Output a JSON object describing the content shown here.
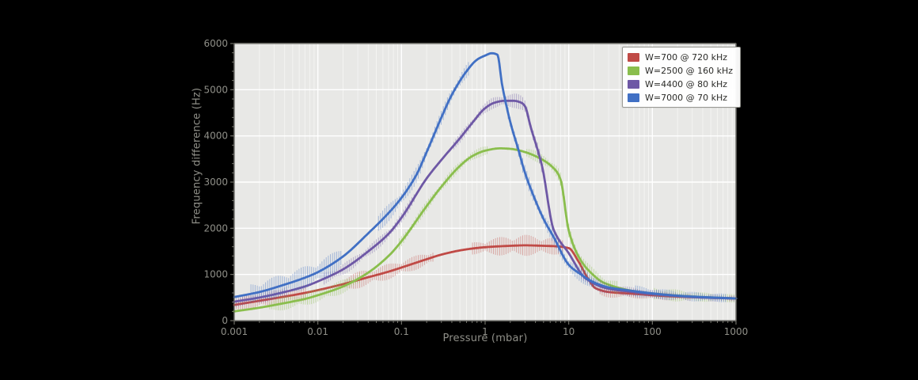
{
  "chart_data": {
    "type": "line",
    "title": "",
    "xlabel": "Pressure (mbar)",
    "ylabel": "Frequency difference (Hz)",
    "x_scale": "log",
    "xlim": [
      0.001,
      1000
    ],
    "ylim": [
      0,
      6000
    ],
    "grid": true,
    "legend_position": "upper right",
    "x_ticks": [
      {
        "v": 0.001,
        "label": "0.001"
      },
      {
        "v": 0.01,
        "label": "0.01"
      },
      {
        "v": 0.1,
        "label": "0.1"
      },
      {
        "v": 1,
        "label": "1"
      },
      {
        "v": 10,
        "label": "10"
      },
      {
        "v": 100,
        "label": "100"
      },
      {
        "v": 1000,
        "label": "1000"
      }
    ],
    "y_ticks": [
      {
        "v": 0,
        "label": "0"
      },
      {
        "v": 1000,
        "label": "1000"
      },
      {
        "v": 2000,
        "label": "2000"
      },
      {
        "v": 3000,
        "label": "3000"
      },
      {
        "v": 4000,
        "label": "4000"
      },
      {
        "v": 5000,
        "label": "5000"
      },
      {
        "v": 6000,
        "label": "6000"
      }
    ],
    "y_minor_step": 200,
    "series": [
      {
        "name": "W=700 @ 720 kHz",
        "color": "#c04a46",
        "x": [
          0.001,
          0.002,
          0.004,
          0.007,
          0.01,
          0.02,
          0.04,
          0.07,
          0.1,
          0.2,
          0.3,
          0.5,
          0.7,
          1,
          1.5,
          2,
          3,
          5,
          7,
          10,
          13,
          17,
          21,
          30,
          60,
          150,
          400,
          1000
        ],
        "y": [
          340,
          430,
          520,
          600,
          660,
          790,
          940,
          1060,
          1150,
          1330,
          1430,
          1520,
          1560,
          1590,
          1610,
          1620,
          1630,
          1620,
          1610,
          1570,
          1290,
          910,
          700,
          620,
          580,
          530,
          500,
          480
        ],
        "err": [
          150,
          160,
          170,
          170,
          170,
          180,
          180,
          170,
          160,
          150,
          140,
          130,
          130,
          160,
          200,
          220,
          230,
          200,
          180,
          170,
          200,
          180,
          150,
          120,
          100,
          90,
          80,
          80
        ]
      },
      {
        "name": "W=2500 @ 160 kHz",
        "color": "#8abe4d",
        "x": [
          0.001,
          0.002,
          0.004,
          0.007,
          0.01,
          0.02,
          0.04,
          0.07,
          0.1,
          0.2,
          0.3,
          0.5,
          0.7,
          1,
          1.5,
          2,
          3,
          5,
          7,
          8,
          10,
          13,
          17,
          27,
          60,
          150,
          400,
          1000
        ],
        "y": [
          200,
          280,
          380,
          470,
          550,
          740,
          1040,
          1400,
          1720,
          2480,
          2900,
          3350,
          3560,
          3680,
          3730,
          3720,
          3650,
          3470,
          3250,
          3050,
          1950,
          1400,
          1100,
          810,
          640,
          560,
          510,
          480
        ],
        "err": [
          140,
          150,
          150,
          150,
          150,
          150,
          140,
          130,
          120,
          110,
          110,
          100,
          100,
          100,
          100,
          100,
          110,
          120,
          140,
          150,
          160,
          160,
          150,
          140,
          150,
          140,
          100,
          90
        ]
      },
      {
        "name": "W=4400 @ 80 kHz",
        "color": "#6e58a5",
        "x": [
          0.001,
          0.002,
          0.004,
          0.007,
          0.01,
          0.02,
          0.04,
          0.07,
          0.1,
          0.2,
          0.3,
          0.5,
          0.7,
          1,
          1.3,
          1.7,
          2.2,
          2.7,
          3,
          3.5,
          4.8,
          6.6,
          10,
          16,
          30,
          60,
          150,
          400,
          1000
        ],
        "y": [
          410,
          500,
          620,
          740,
          850,
          1110,
          1500,
          1880,
          2230,
          3080,
          3480,
          3950,
          4280,
          4600,
          4720,
          4760,
          4760,
          4720,
          4640,
          4200,
          3340,
          1970,
          1460,
          910,
          690,
          620,
          550,
          500,
          480
        ],
        "err": [
          120,
          130,
          130,
          130,
          130,
          130,
          120,
          120,
          110,
          110,
          100,
          100,
          100,
          110,
          130,
          150,
          160,
          160,
          150,
          170,
          180,
          170,
          160,
          140,
          120,
          100,
          90,
          80,
          80
        ]
      },
      {
        "name": "W=7000 @ 70 kHz",
        "color": "#4170c4",
        "x": [
          0.001,
          0.002,
          0.004,
          0.007,
          0.01,
          0.02,
          0.04,
          0.07,
          0.1,
          0.15,
          0.2,
          0.3,
          0.4,
          0.6,
          0.8,
          1,
          1.2,
          1.4,
          1.6,
          2,
          2.5,
          3,
          4,
          5,
          6.6,
          10,
          14,
          20,
          30,
          60,
          100,
          200,
          400,
          1000
        ],
        "y": [
          510,
          620,
          780,
          930,
          1050,
          1390,
          1890,
          2330,
          2660,
          3150,
          3650,
          4400,
          4890,
          5400,
          5650,
          5740,
          5790,
          5760,
          5100,
          4300,
          3700,
          3200,
          2600,
          2200,
          1810,
          1210,
          1000,
          830,
          720,
          640,
          590,
          540,
          510,
          480
        ],
        "err": [
          200,
          230,
          250,
          250,
          240,
          230,
          210,
          190,
          180,
          170,
          160,
          150,
          150,
          150,
          140,
          140,
          140,
          150,
          180,
          180,
          170,
          160,
          150,
          150,
          150,
          160,
          170,
          160,
          150,
          130,
          120,
          110,
          100,
          90
        ]
      }
    ]
  },
  "colors": {
    "plot_background": "#e8e8e6",
    "grid_major": "#ffffff",
    "grid_minor": "#f4f4f2",
    "spine": "#55554f",
    "tick": "#77776f",
    "tick_text": "#8f8f88",
    "page_background": "#000000"
  }
}
